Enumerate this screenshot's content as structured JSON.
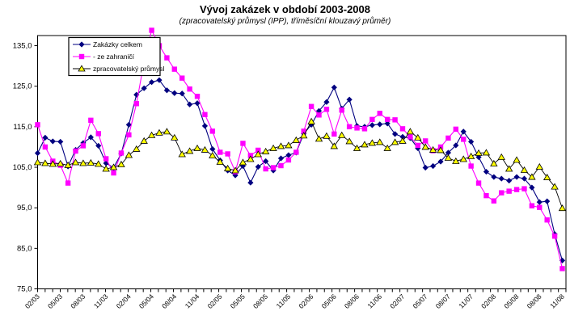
{
  "title": "Vývoj zakázek v období 2003-2008",
  "subtitle": "(zpracovatelský průmysl (IPP), tříměsíční klouzavý průměr)",
  "chart_data": {
    "type": "line",
    "grid": false,
    "legend_position": "top-left-inside",
    "ylim": [
      75,
      137.5
    ],
    "yticks": [
      135,
      125,
      115,
      105,
      95,
      85,
      75
    ],
    "ytick_labels": [
      "135,0",
      "125,0",
      "115,0",
      "105,0",
      "95,0",
      "85,0",
      "75,0"
    ],
    "label_every": 3,
    "x_tick_labels": [
      "02/03",
      "05/03",
      "08/03",
      "11/03",
      "02/04",
      "05/04",
      "08/04",
      "11/04",
      "02/05",
      "05/05",
      "08/05",
      "11/05",
      "02/06",
      "05/06",
      "08/06",
      "11/06",
      "02/07",
      "05/07",
      "08/07",
      "11/07",
      "02/08",
      "05/08",
      "08/08",
      "11/08"
    ],
    "categories": [
      "02/03",
      "03/03",
      "04/03",
      "05/03",
      "06/03",
      "07/03",
      "08/03",
      "09/03",
      "10/03",
      "11/03",
      "12/03",
      "01/04",
      "02/04",
      "03/04",
      "04/04",
      "05/04",
      "06/04",
      "07/04",
      "08/04",
      "09/04",
      "10/04",
      "11/04",
      "12/04",
      "01/05",
      "02/05",
      "03/05",
      "04/05",
      "05/05",
      "06/05",
      "07/05",
      "08/05",
      "09/05",
      "10/05",
      "11/05",
      "12/05",
      "01/06",
      "02/06",
      "03/06",
      "04/06",
      "05/06",
      "06/06",
      "07/06",
      "08/06",
      "09/06",
      "10/06",
      "11/06",
      "12/06",
      "01/07",
      "02/07",
      "03/07",
      "04/07",
      "05/07",
      "06/07",
      "07/07",
      "08/07",
      "09/07",
      "10/07",
      "11/07",
      "12/07",
      "01/08",
      "02/08",
      "03/08",
      "04/08",
      "05/08",
      "06/08",
      "07/08",
      "08/08",
      "09/08",
      "10/08",
      "11/08"
    ],
    "series": [
      {
        "name": "Zakázky celkem",
        "color": "#000080",
        "marker": "diamond",
        "marker_fill": "#000080",
        "values": [
          108.5,
          112.3,
          111.4,
          111.3,
          105.2,
          109.3,
          111.0,
          112.4,
          110.3,
          106.0,
          104.9,
          108.4,
          115.5,
          122.9,
          124.5,
          126.0,
          126.5,
          124.0,
          123.3,
          123.2,
          120.5,
          120.8,
          115.2,
          109.5,
          106.7,
          104.2,
          103.0,
          105.3,
          101.2,
          105.1,
          106.5,
          104.2,
          107.2,
          108.0,
          108.6,
          113.3,
          115.5,
          118.9,
          121.1,
          124.7,
          119.5,
          121.7,
          115.2,
          115.0,
          115.4,
          115.6,
          115.8,
          113.2,
          112.5,
          112.2,
          109.7,
          104.9,
          105.3,
          106.4,
          108.6,
          110.4,
          113.8,
          111.3,
          107.5,
          103.9,
          102.6,
          102.2,
          101.7,
          102.6,
          102.2,
          100.0,
          96.4,
          96.6,
          88.5,
          82.0
        ]
      },
      {
        "name": "- ze zahraničí",
        "color": "#FF00FF",
        "marker": "square",
        "marker_fill": "#FF00FF",
        "values": [
          115.5,
          110.0,
          106.5,
          105.5,
          101.1,
          109.0,
          110.3,
          116.6,
          113.3,
          107.1,
          103.6,
          108.5,
          113.0,
          120.7,
          131.0,
          138.8,
          135.0,
          132.0,
          129.2,
          127.0,
          124.3,
          122.5,
          118.0,
          113.9,
          108.7,
          108.3,
          103.9,
          110.9,
          107.9,
          109.2,
          104.6,
          104.9,
          105.4,
          106.8,
          108.7,
          113.9,
          120.0,
          117.9,
          119.3,
          113.2,
          119.1,
          115.0,
          114.7,
          114.5,
          116.8,
          118.3,
          116.8,
          116.7,
          114.5,
          112.5,
          110.4,
          111.5,
          109.1,
          110.0,
          112.2,
          114.4,
          111.9,
          105.3,
          101.1,
          98.0,
          96.7,
          98.7,
          99.1,
          99.5,
          99.7,
          95.5,
          95.1,
          92.0,
          88.0,
          80.0
        ]
      },
      {
        "name": "zpracovatelský průmysl",
        "color": "#000000",
        "marker": "triangle",
        "marker_fill": "#FFFF00",
        "values": [
          106.2,
          106.0,
          105.8,
          105.9,
          105.5,
          106.2,
          106.0,
          106.1,
          105.8,
          104.6,
          105.0,
          105.7,
          108.0,
          109.5,
          111.5,
          112.9,
          113.5,
          113.8,
          112.3,
          108.2,
          109.0,
          109.7,
          109.3,
          107.9,
          106.3,
          104.7,
          104.2,
          106.2,
          107.0,
          108.2,
          108.9,
          109.7,
          110.2,
          110.4,
          111.7,
          112.8,
          116.3,
          112.0,
          112.7,
          110.2,
          112.9,
          111.4,
          109.7,
          110.6,
          111.0,
          111.2,
          109.7,
          111.2,
          111.5,
          113.8,
          112.3,
          110.0,
          109.3,
          109.2,
          107.3,
          106.5,
          107.0,
          107.7,
          108.5,
          108.6,
          105.9,
          107.5,
          104.6,
          106.8,
          104.3,
          102.6,
          105.1,
          102.5,
          100.2,
          94.9
        ]
      }
    ]
  }
}
